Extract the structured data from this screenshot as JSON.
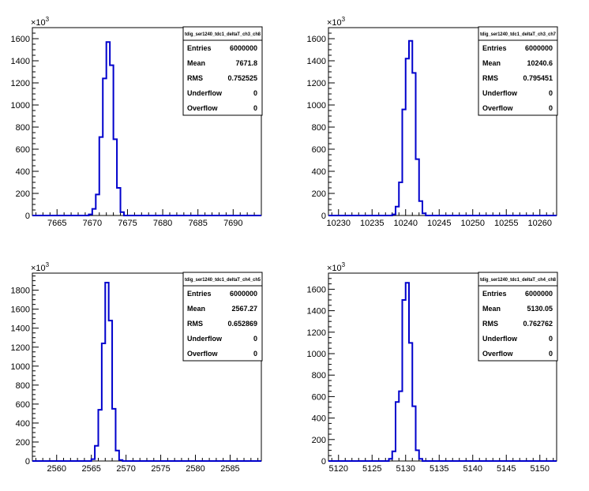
{
  "chart_data": [
    {
      "type": "histogram",
      "title": "",
      "xlabel": "",
      "ylabel": "",
      "y_multiplier": "×10",
      "y_multiplier_exp": "3",
      "xlim": [
        7661.5,
        7694
      ],
      "ylim": [
        0,
        1700
      ],
      "xticks": [
        7665,
        7670,
        7675,
        7680,
        7685,
        7690
      ],
      "yticks": [
        0,
        200,
        400,
        600,
        800,
        1000,
        1200,
        1400,
        1600
      ],
      "bin_width": 0.5,
      "x": [
        7669.5,
        7670,
        7670.5,
        7671,
        7671.5,
        7672,
        7672.5,
        7673,
        7673.5,
        7674
      ],
      "values": [
        10,
        60,
        190,
        710,
        1240,
        1570,
        1360,
        690,
        250,
        30
      ],
      "grid": false,
      "legend": "top-right",
      "stats": {
        "name": "tdig_ser1240_tdc1_deltaT_ch3_ch8",
        "rows": [
          {
            "label": "Entries",
            "value": "6000000"
          },
          {
            "label": "Mean",
            "value": "7671.8"
          },
          {
            "label": "RMS",
            "value": "0.752525"
          },
          {
            "label": "Underflow",
            "value": "0"
          },
          {
            "label": "Overflow",
            "value": "0"
          }
        ]
      }
    },
    {
      "type": "histogram",
      "title": "",
      "xlabel": "",
      "ylabel": "",
      "y_multiplier": "×10",
      "y_multiplier_exp": "3",
      "xlim": [
        10228.5,
        10262.5
      ],
      "ylim": [
        0,
        1700
      ],
      "xticks": [
        10230,
        10235,
        10240,
        10245,
        10250,
        10255,
        10260
      ],
      "yticks": [
        0,
        200,
        400,
        600,
        800,
        1000,
        1200,
        1400,
        1600
      ],
      "bin_width": 0.5,
      "x": [
        10238,
        10238.5,
        10239,
        10239.5,
        10240,
        10240.5,
        10241,
        10241.5,
        10242,
        10242.5
      ],
      "values": [
        10,
        80,
        300,
        960,
        1420,
        1580,
        1290,
        510,
        130,
        20
      ],
      "grid": false,
      "legend": "top-right",
      "stats": {
        "name": "tdig_ser1240_tdc1_deltaT_ch3_ch7",
        "rows": [
          {
            "label": "Entries",
            "value": "6000000"
          },
          {
            "label": "Mean",
            "value": "10240.6"
          },
          {
            "label": "RMS",
            "value": "0.795451"
          },
          {
            "label": "Underflow",
            "value": "0"
          },
          {
            "label": "Overflow",
            "value": "0"
          }
        ]
      }
    },
    {
      "type": "histogram",
      "title": "",
      "xlabel": "",
      "ylabel": "",
      "y_multiplier": "×10",
      "y_multiplier_exp": "3",
      "xlim": [
        2556.5,
        2589.5
      ],
      "ylim": [
        0,
        1980
      ],
      "xticks": [
        2560,
        2565,
        2570,
        2575,
        2580,
        2585
      ],
      "yticks": [
        0,
        200,
        400,
        600,
        800,
        1000,
        1200,
        1400,
        1600,
        1800
      ],
      "bin_width": 0.5,
      "x": [
        2565,
        2565.5,
        2566,
        2566.5,
        2567,
        2567.5,
        2568,
        2568.5,
        2569
      ],
      "values": [
        20,
        160,
        540,
        1240,
        1880,
        1480,
        550,
        110,
        10
      ],
      "grid": false,
      "legend": "top-right",
      "stats": {
        "name": "tdig_ser1240_tdc1_deltaT_ch4_ch5",
        "rows": [
          {
            "label": "Entries",
            "value": "6000000"
          },
          {
            "label": "Mean",
            "value": "2567.27"
          },
          {
            "label": "RMS",
            "value": "0.652869"
          },
          {
            "label": "Underflow",
            "value": "0"
          },
          {
            "label": "Overflow",
            "value": "0"
          }
        ]
      }
    },
    {
      "type": "histogram",
      "title": "",
      "xlabel": "",
      "ylabel": "",
      "y_multiplier": "×10",
      "y_multiplier_exp": "3",
      "xlim": [
        5118.5,
        5152.5
      ],
      "ylim": [
        0,
        1750
      ],
      "xticks": [
        5120,
        5125,
        5130,
        5135,
        5140,
        5145,
        5150
      ],
      "yticks": [
        0,
        200,
        400,
        600,
        800,
        1000,
        1200,
        1400,
        1600
      ],
      "bin_width": 0.5,
      "x": [
        5127.5,
        5128,
        5128.5,
        5129,
        5129.5,
        5130,
        5130.5,
        5131,
        5131.5,
        5132
      ],
      "values": [
        20,
        90,
        550,
        650,
        1500,
        1660,
        1100,
        510,
        100,
        20
      ],
      "grid": false,
      "legend": "top-right",
      "stats": {
        "name": "tdig_ser1240_tdc1_deltaT_ch4_ch8",
        "rows": [
          {
            "label": "Entries",
            "value": "6000000"
          },
          {
            "label": "Mean",
            "value": "5130.05"
          },
          {
            "label": "RMS",
            "value": "0.762762"
          },
          {
            "label": "Underflow",
            "value": "0"
          },
          {
            "label": "Overflow",
            "value": "0"
          }
        ]
      }
    }
  ],
  "colors": {
    "histogram_line": "#0000cc",
    "axis": "#000000",
    "background": "#ffffff"
  }
}
